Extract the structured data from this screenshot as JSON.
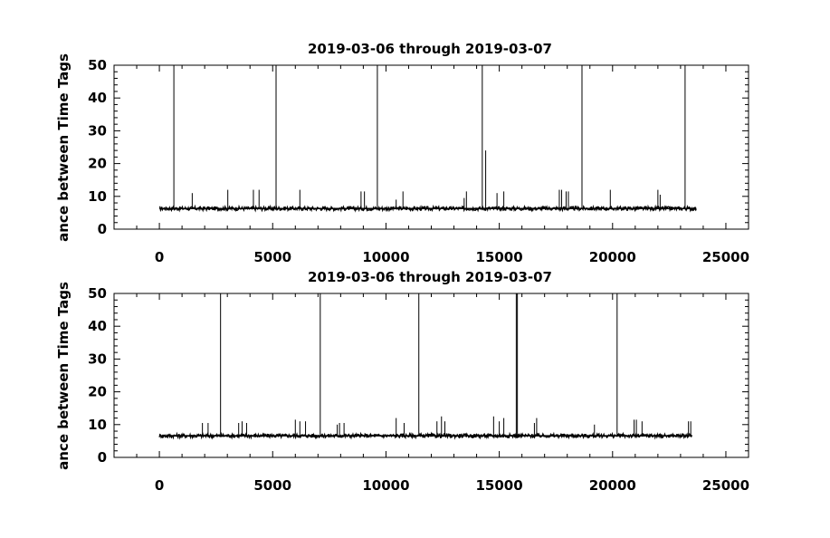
{
  "chart_data": [
    {
      "type": "line",
      "title": "2019-03-06 through 2019-03-07",
      "xlabel": "",
      "ylabel": "Distance between Time Tags",
      "ylabel_visible": "ance between Time Tags",
      "xlim": [
        -2000,
        26000
      ],
      "ylim": [
        0,
        50
      ],
      "xticks": [
        0,
        5000,
        10000,
        15000,
        20000,
        25000
      ],
      "yticks": [
        0,
        10,
        20,
        30,
        40,
        50
      ],
      "color": "#000000",
      "series": [
        {
          "baseline": 6.3,
          "x_start": 0,
          "x_end": 23700,
          "spikes": [
            {
              "x": 640,
              "y": 50
            },
            {
              "x": 5150,
              "y": 50
            },
            {
              "x": 9620,
              "y": 50
            },
            {
              "x": 14250,
              "y": 50
            },
            {
              "x": 18650,
              "y": 50
            },
            {
              "x": 23200,
              "y": 50
            },
            {
              "x": 14400,
              "y": 24
            },
            {
              "x": 1450,
              "y": 11
            },
            {
              "x": 3020,
              "y": 12
            },
            {
              "x": 4150,
              "y": 12
            },
            {
              "x": 4400,
              "y": 12
            },
            {
              "x": 6200,
              "y": 12
            },
            {
              "x": 8900,
              "y": 11.5
            },
            {
              "x": 9050,
              "y": 11.5
            },
            {
              "x": 10450,
              "y": 9
            },
            {
              "x": 10750,
              "y": 11.5
            },
            {
              "x": 13450,
              "y": 9.5
            },
            {
              "x": 13550,
              "y": 11.5
            },
            {
              "x": 14900,
              "y": 11
            },
            {
              "x": 15200,
              "y": 11.5
            },
            {
              "x": 17650,
              "y": 12
            },
            {
              "x": 17750,
              "y": 12
            },
            {
              "x": 17950,
              "y": 11.5
            },
            {
              "x": 18050,
              "y": 11.5
            },
            {
              "x": 19900,
              "y": 12
            },
            {
              "x": 22000,
              "y": 12
            },
            {
              "x": 22100,
              "y": 10.5
            }
          ]
        }
      ]
    },
    {
      "type": "line",
      "title": "2019-03-06 through 2019-03-07",
      "xlabel": "",
      "ylabel": "Distance between Time Tags",
      "ylabel_visible": "ance between Time Tags",
      "xlim": [
        -2000,
        26000
      ],
      "ylim": [
        0,
        50
      ],
      "xticks": [
        0,
        5000,
        10000,
        15000,
        20000,
        25000
      ],
      "yticks": [
        0,
        10,
        20,
        30,
        40,
        50
      ],
      "color": "#000000",
      "series": [
        {
          "baseline": 6.6,
          "x_start": 0,
          "x_end": 23500,
          "spikes": [
            {
              "x": 2700,
              "y": 50
            },
            {
              "x": 7100,
              "y": 50
            },
            {
              "x": 11450,
              "y": 50
            },
            {
              "x": 15750,
              "y": 50
            },
            {
              "x": 15800,
              "y": 50
            },
            {
              "x": 20200,
              "y": 50
            },
            {
              "x": 1900,
              "y": 10.5
            },
            {
              "x": 2150,
              "y": 10.5
            },
            {
              "x": 3500,
              "y": 10.5
            },
            {
              "x": 3650,
              "y": 11
            },
            {
              "x": 3850,
              "y": 10.5
            },
            {
              "x": 6000,
              "y": 11.5
            },
            {
              "x": 6200,
              "y": 11
            },
            {
              "x": 6450,
              "y": 11
            },
            {
              "x": 7850,
              "y": 10
            },
            {
              "x": 7950,
              "y": 10.5
            },
            {
              "x": 8150,
              "y": 10.5
            },
            {
              "x": 10450,
              "y": 12
            },
            {
              "x": 10800,
              "y": 10.5
            },
            {
              "x": 12250,
              "y": 11
            },
            {
              "x": 12450,
              "y": 12.5
            },
            {
              "x": 12600,
              "y": 11
            },
            {
              "x": 14750,
              "y": 12.5
            },
            {
              "x": 15000,
              "y": 11
            },
            {
              "x": 15200,
              "y": 12
            },
            {
              "x": 16550,
              "y": 10.5
            },
            {
              "x": 16650,
              "y": 12
            },
            {
              "x": 19200,
              "y": 10
            },
            {
              "x": 20950,
              "y": 11.5
            },
            {
              "x": 21050,
              "y": 11.5
            },
            {
              "x": 21300,
              "y": 11
            },
            {
              "x": 23350,
              "y": 11
            },
            {
              "x": 23450,
              "y": 11
            }
          ]
        }
      ]
    }
  ]
}
